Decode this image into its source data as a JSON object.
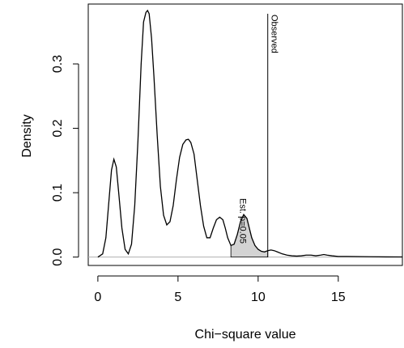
{
  "chart_data": {
    "type": "area",
    "xlabel": "Chi−square value",
    "ylabel": "Density",
    "xlim": [
      -0.6,
      19.0
    ],
    "ylim": [
      -0.013,
      0.393
    ],
    "x_ticks": [
      "0",
      "5",
      "10",
      "15"
    ],
    "y_ticks": [
      "0.0",
      "0.1",
      "0.2",
      "0.3"
    ],
    "observed": {
      "x": 10.6,
      "label": "Observed"
    },
    "estimate_label": "Est. p=0.05",
    "series": [
      {
        "x": [
          0.0,
          0.3,
          0.5,
          0.7,
          0.85,
          1.0,
          1.15,
          1.3,
          1.5,
          1.7,
          1.9,
          2.1,
          2.3,
          2.5,
          2.7,
          2.85,
          3.0,
          3.1,
          3.2,
          3.35,
          3.5,
          3.7,
          3.9,
          4.1,
          4.3,
          4.5,
          4.7,
          4.9,
          5.1,
          5.3,
          5.5,
          5.65,
          5.8,
          6.0,
          6.2,
          6.4,
          6.6,
          6.8,
          7.0,
          7.2,
          7.4,
          7.6,
          7.8,
          7.95,
          8.1,
          8.3,
          8.5,
          8.7,
          8.9,
          9.1,
          9.3,
          9.45,
          9.6,
          9.8,
          10.0,
          10.2,
          10.4,
          10.6,
          10.8,
          11.0,
          11.2,
          11.5,
          11.8,
          12.1,
          12.4,
          12.7,
          13.0,
          13.3,
          13.6,
          13.9,
          14.1,
          14.3,
          14.6,
          15.0,
          15.5,
          16.0,
          17.0,
          18.0,
          19.0
        ],
        "y": [
          0.0,
          0.005,
          0.03,
          0.09,
          0.135,
          0.152,
          0.14,
          0.1,
          0.045,
          0.012,
          0.005,
          0.02,
          0.08,
          0.18,
          0.3,
          0.365,
          0.38,
          0.383,
          0.378,
          0.34,
          0.28,
          0.19,
          0.11,
          0.065,
          0.05,
          0.055,
          0.08,
          0.12,
          0.155,
          0.175,
          0.182,
          0.183,
          0.178,
          0.16,
          0.12,
          0.08,
          0.048,
          0.03,
          0.03,
          0.045,
          0.058,
          0.062,
          0.058,
          0.045,
          0.03,
          0.018,
          0.02,
          0.035,
          0.055,
          0.066,
          0.06,
          0.045,
          0.03,
          0.018,
          0.012,
          0.009,
          0.008,
          0.01,
          0.011,
          0.01,
          0.008,
          0.005,
          0.003,
          0.002,
          0.0015,
          0.002,
          0.003,
          0.003,
          0.002,
          0.003,
          0.004,
          0.003,
          0.002,
          0.001,
          0.001,
          0.0008,
          0.0005,
          0.0003,
          0.0002
        ]
      }
    ]
  }
}
